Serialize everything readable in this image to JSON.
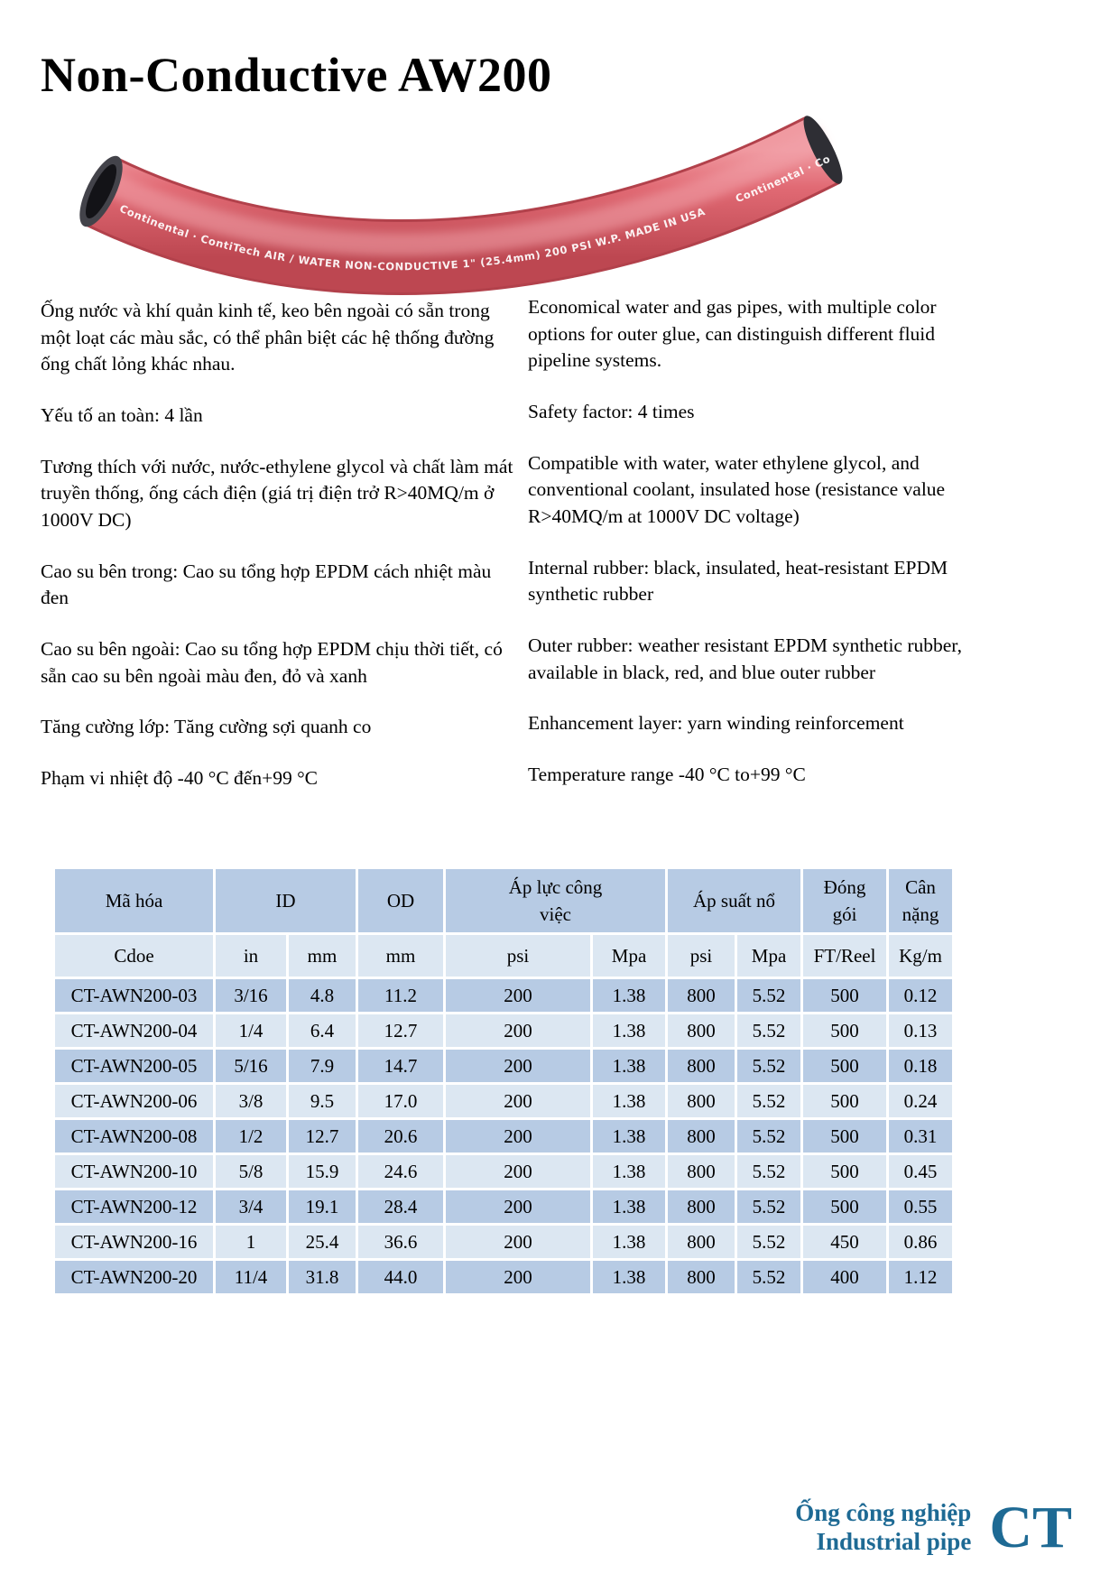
{
  "page": {
    "title": "Non-Conductive AW200"
  },
  "hose_image": {
    "description": "curved red rubber hose",
    "print_text": "Continental · ContiTech    AIR / WATER NON-CONDUCTIVE  1\" (25.4mm) 200 PSI W.P. MADE IN USA",
    "body_color": "#dd5f6a"
  },
  "columns": {
    "vi": {
      "paragraphs": [
        "Ống nước và khí quản kinh tế, keo bên ngoài có sẵn trong một loạt các màu sắc, có thể phân biệt các hệ thống đường ống chất lỏng khác nhau.",
        "Yếu tố an toàn: 4 lần",
        "Tương thích với nước, nước-ethylene glycol và chất làm mát truyền thống, ống cách điện (giá trị điện trở R>40MQ/m ở 1000V DC)",
        "Cao su bên trong: Cao su tổng hợp EPDM cách nhiệt màu đen",
        "Cao su bên ngoài: Cao su tổng hợp EPDM chịu thời tiết, có sẵn cao su bên ngoài màu đen, đỏ và xanh",
        "Tăng cường lớp: Tăng cường sợi quanh co",
        "Phạm vi nhiệt độ -40 °C đến+99 °C"
      ]
    },
    "en": {
      "paragraphs": [
        "Economical water and gas pipes, with multiple color options for outer glue, can distinguish different fluid pipeline systems.",
        "Safety factor: 4 times",
        "Compatible with water, water ethylene glycol, and conventional coolant, insulated hose (resistance value R>40MQ/m at 1000V DC voltage)",
        "Internal rubber: black, insulated, heat-resistant EPDM synthetic rubber",
        "Outer rubber: weather resistant EPDM synthetic rubber, available in black, red, and blue outer rubber",
        "Enhancement layer: yarn winding reinforcement",
        "Temperature range -40 °C to+99 °C"
      ]
    }
  },
  "table": {
    "header_row1": [
      "Mã hóa",
      "ID",
      "OD",
      "Áp lực công việc",
      "Áp suất nổ",
      "Đóng gói",
      "Cân nặng"
    ],
    "header_row2": [
      "Cdoe",
      "in",
      "mm",
      "mm",
      "psi",
      "Mpa",
      "psi",
      "Mpa",
      "FT/Reel",
      "Kg/m"
    ],
    "rows": [
      [
        "CT-AWN200-03",
        "3/16",
        "4.8",
        "11.2",
        "200",
        "1.38",
        "800",
        "5.52",
        "500",
        "0.12"
      ],
      [
        "CT-AWN200-04",
        "1/4",
        "6.4",
        "12.7",
        "200",
        "1.38",
        "800",
        "5.52",
        "500",
        "0.13"
      ],
      [
        "CT-AWN200-05",
        "5/16",
        "7.9",
        "14.7",
        "200",
        "1.38",
        "800",
        "5.52",
        "500",
        "0.18"
      ],
      [
        "CT-AWN200-06",
        "3/8",
        "9.5",
        "17.0",
        "200",
        "1.38",
        "800",
        "5.52",
        "500",
        "0.24"
      ],
      [
        "CT-AWN200-08",
        "1/2",
        "12.7",
        "20.6",
        "200",
        "1.38",
        "800",
        "5.52",
        "500",
        "0.31"
      ],
      [
        "CT-AWN200-10",
        "5/8",
        "15.9",
        "24.6",
        "200",
        "1.38",
        "800",
        "5.52",
        "500",
        "0.45"
      ],
      [
        "CT-AWN200-12",
        "3/4",
        "19.1",
        "28.4",
        "200",
        "1.38",
        "800",
        "5.52",
        "500",
        "0.55"
      ],
      [
        "CT-AWN200-16",
        "1",
        "25.4",
        "36.6",
        "200",
        "1.38",
        "800",
        "5.52",
        "450",
        "0.86"
      ],
      [
        "CT-AWN200-20",
        "11/4",
        "31.8",
        "44.0",
        "200",
        "1.38",
        "800",
        "5.52",
        "400",
        "1.12"
      ]
    ]
  },
  "footer": {
    "tagline_vi": "Ống công nghiệp",
    "tagline_en": "Industrial pipe",
    "logo_text": "CT"
  },
  "colors": {
    "table_header_blue": "#b7cbe4",
    "table_row_dark": "#b7cbe4",
    "table_row_light": "#dce7f2",
    "brand_teal": "#1e6a94",
    "hose_red": "#dd5f6a"
  }
}
